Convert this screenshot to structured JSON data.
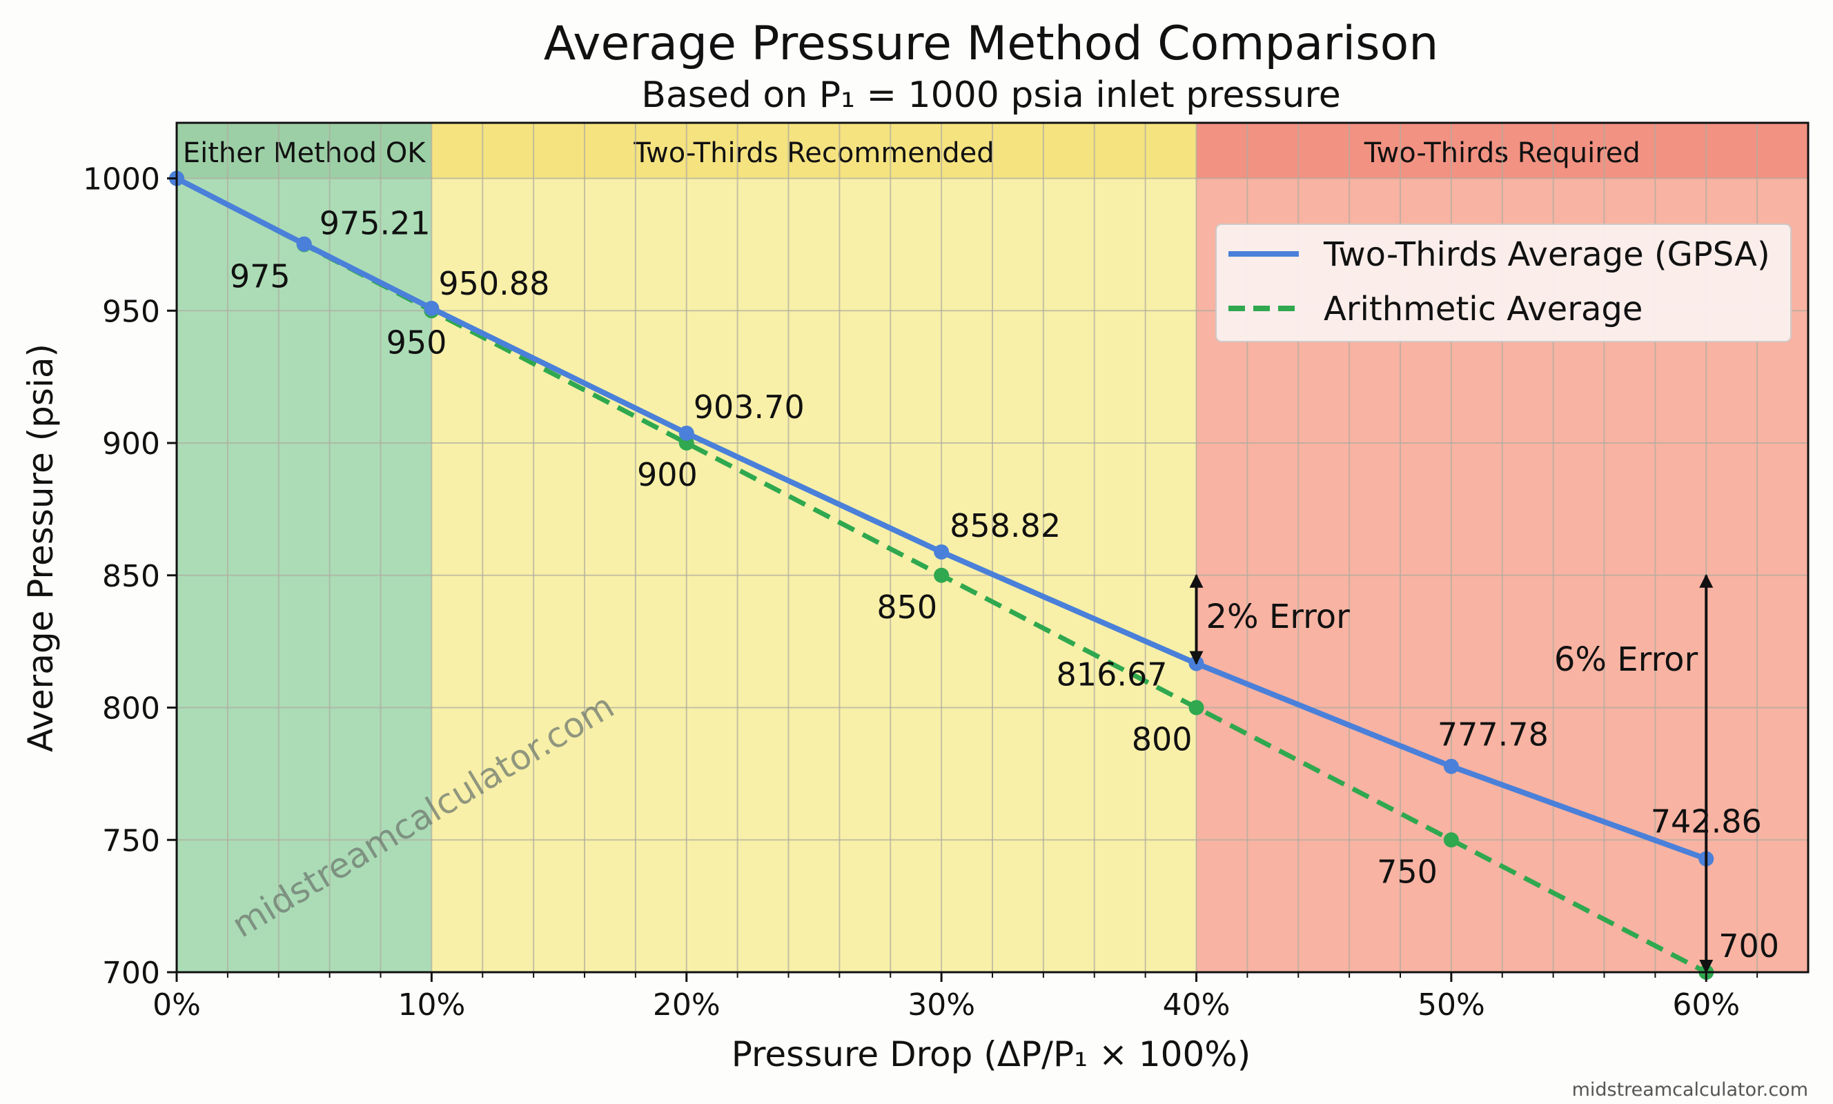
{
  "chart_data": {
    "type": "line",
    "title": "Average Pressure Method Comparison",
    "subtitle": "Based on P₁ = 1000 psia inlet pressure",
    "xlabel": "Pressure Drop (ΔP/P₁ × 100%)",
    "ylabel": "Average Pressure (psia)",
    "xlim": [
      0,
      64
    ],
    "ylim": [
      700,
      1021
    ],
    "x_ticks": [
      0,
      10,
      20,
      30,
      40,
      50,
      60
    ],
    "x_tick_labels": [
      "0%",
      "10%",
      "20%",
      "30%",
      "40%",
      "50%",
      "60%"
    ],
    "y_ticks": [
      700,
      750,
      800,
      850,
      900,
      950,
      1000
    ],
    "y_tick_labels": [
      "700",
      "750",
      "800",
      "850",
      "900",
      "950",
      "1000"
    ],
    "grid": true,
    "legend_placement": "top-right",
    "zones": [
      {
        "label": "Either Method OK",
        "from": 0,
        "to": 10,
        "color": "#abdcb6",
        "header_color": "#9ccfa6"
      },
      {
        "label": "Two-Thirds Recommended",
        "from": 10,
        "to": 40,
        "color": "#f8f0a8",
        "header_color": "#f5e380"
      },
      {
        "label": "Two-Thirds Required",
        "from": 40,
        "to": 64,
        "color": "#f8b3a2",
        "header_color": "#f29282"
      }
    ],
    "x": [
      0,
      5,
      10,
      20,
      30,
      40,
      50,
      60
    ],
    "series": [
      {
        "name": "Two-Thirds Average (GPSA)",
        "color": "#4a80d9",
        "style": "solid",
        "values": [
          1000,
          975.21,
          950.88,
          903.7,
          858.82,
          816.67,
          777.78,
          742.86
        ],
        "labels": [
          "",
          "975.21",
          "950.88",
          "903.70",
          "858.82",
          "816.67",
          "777.78",
          "742.86"
        ]
      },
      {
        "name": "Arithmetic Average",
        "color": "#2fa84f",
        "style": "dashed",
        "values": [
          1000,
          975,
          950,
          900,
          850,
          800,
          750,
          700
        ],
        "labels": [
          "",
          "975",
          "950",
          "900",
          "850",
          "800",
          "750",
          "700"
        ]
      }
    ],
    "annotations": [
      {
        "text": "2% Error",
        "x": 40,
        "y_from": 850,
        "y_to": 816.67
      },
      {
        "text": "6% Error",
        "x": 60,
        "y_from": 850,
        "y_to": 700
      }
    ]
  },
  "watermark": "midstreamcalculator.com",
  "footer": "midstreamcalculator.com"
}
